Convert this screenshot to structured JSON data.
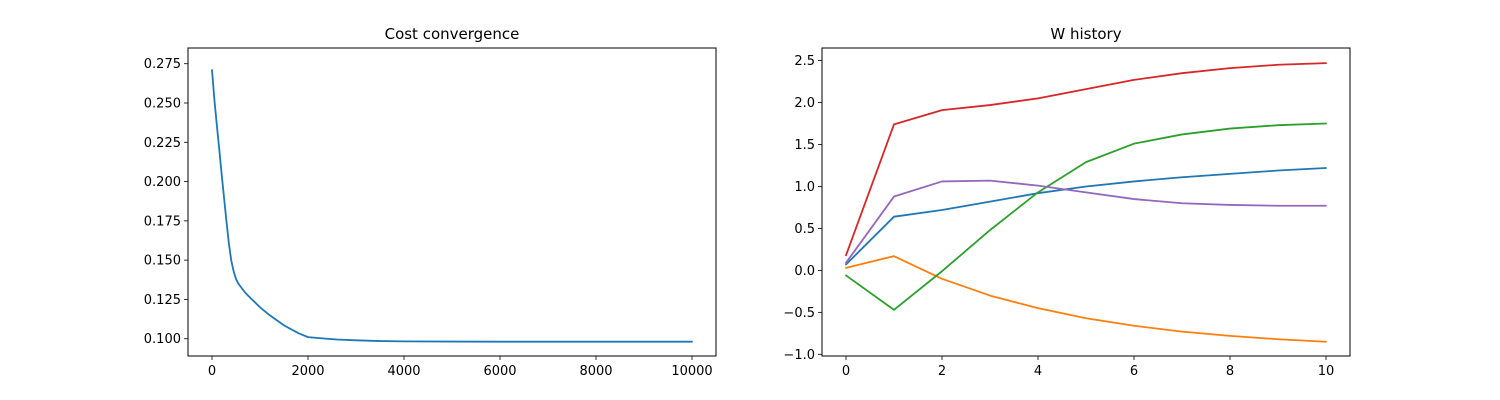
{
  "chart_data": [
    {
      "type": "line",
      "title": "Cost convergence",
      "xlabel": "",
      "ylabel": "",
      "xlim": [
        -500,
        10500
      ],
      "ylim": [
        0.089,
        0.285
      ],
      "xticks": [
        0,
        2000,
        4000,
        6000,
        8000,
        10000
      ],
      "xtick_labels": [
        "0",
        "2000",
        "4000",
        "6000",
        "8000",
        "10000"
      ],
      "yticks": [
        0.1,
        0.125,
        0.15,
        0.175,
        0.2,
        0.225,
        0.25,
        0.275
      ],
      "ytick_labels": [
        "0.100",
        "0.125",
        "0.150",
        "0.175",
        "0.200",
        "0.225",
        "0.250",
        "0.275"
      ],
      "grid": false,
      "series": [
        {
          "color": "#1f77b4",
          "x": [
            0,
            50,
            100,
            150,
            200,
            250,
            300,
            350,
            400,
            450,
            500,
            550,
            600,
            700,
            800,
            1000,
            1200,
            1500,
            1800,
            2000,
            2300,
            2600,
            3000,
            3500,
            4000,
            5000,
            6000,
            7000,
            8000,
            9000,
            10000
          ],
          "y": [
            0.271,
            0.252,
            0.236,
            0.221,
            0.205,
            0.19,
            0.175,
            0.161,
            0.15,
            0.143,
            0.138,
            0.135,
            0.133,
            0.129,
            0.126,
            0.12,
            0.115,
            0.1085,
            0.1035,
            0.101,
            0.1002,
            0.0995,
            0.099,
            0.0985,
            0.0983,
            0.0982,
            0.0981,
            0.0981,
            0.0981,
            0.0981,
            0.0981
          ]
        }
      ]
    },
    {
      "type": "line",
      "title": "W history",
      "xlabel": "",
      "ylabel": "",
      "xlim": [
        -0.5,
        10.5
      ],
      "ylim": [
        -1.02,
        2.65
      ],
      "xticks": [
        0,
        2,
        4,
        6,
        8,
        10
      ],
      "xtick_labels": [
        "0",
        "2",
        "4",
        "6",
        "8",
        "10"
      ],
      "yticks": [
        -1.0,
        -0.5,
        0.0,
        0.5,
        1.0,
        1.5,
        2.0,
        2.5
      ],
      "ytick_labels": [
        "−1.0",
        "−0.5",
        "0.0",
        "0.5",
        "1.0",
        "1.5",
        "2.0",
        "2.5"
      ],
      "grid": false,
      "series": [
        {
          "color": "#1f77b4",
          "x": [
            0,
            1,
            2,
            3,
            4,
            5,
            6,
            7,
            8,
            9,
            10
          ],
          "y": [
            0.07,
            0.64,
            0.72,
            0.82,
            0.92,
            1.0,
            1.06,
            1.11,
            1.15,
            1.19,
            1.22
          ]
        },
        {
          "color": "#ff7f0e",
          "x": [
            0,
            1,
            2,
            3,
            4,
            5,
            6,
            7,
            8,
            9,
            10
          ],
          "y": [
            0.03,
            0.17,
            -0.1,
            -0.3,
            -0.45,
            -0.57,
            -0.66,
            -0.73,
            -0.78,
            -0.82,
            -0.85
          ]
        },
        {
          "color": "#2ca02c",
          "x": [
            0,
            1,
            2,
            3,
            4,
            5,
            6,
            7,
            8,
            9,
            10
          ],
          "y": [
            -0.06,
            -0.47,
            -0.01,
            0.48,
            0.93,
            1.29,
            1.51,
            1.62,
            1.69,
            1.73,
            1.75
          ]
        },
        {
          "color": "#d62728",
          "x": [
            0,
            1,
            2,
            3,
            4,
            5,
            6,
            7,
            8,
            9,
            10
          ],
          "y": [
            0.18,
            1.74,
            1.91,
            1.97,
            2.05,
            2.16,
            2.27,
            2.35,
            2.41,
            2.45,
            2.47
          ]
        },
        {
          "color": "#9467bd",
          "x": [
            0,
            1,
            2,
            3,
            4,
            5,
            6,
            7,
            8,
            9,
            10
          ],
          "y": [
            0.09,
            0.88,
            1.06,
            1.07,
            1.01,
            0.93,
            0.85,
            0.8,
            0.78,
            0.77,
            0.77
          ]
        }
      ]
    }
  ]
}
